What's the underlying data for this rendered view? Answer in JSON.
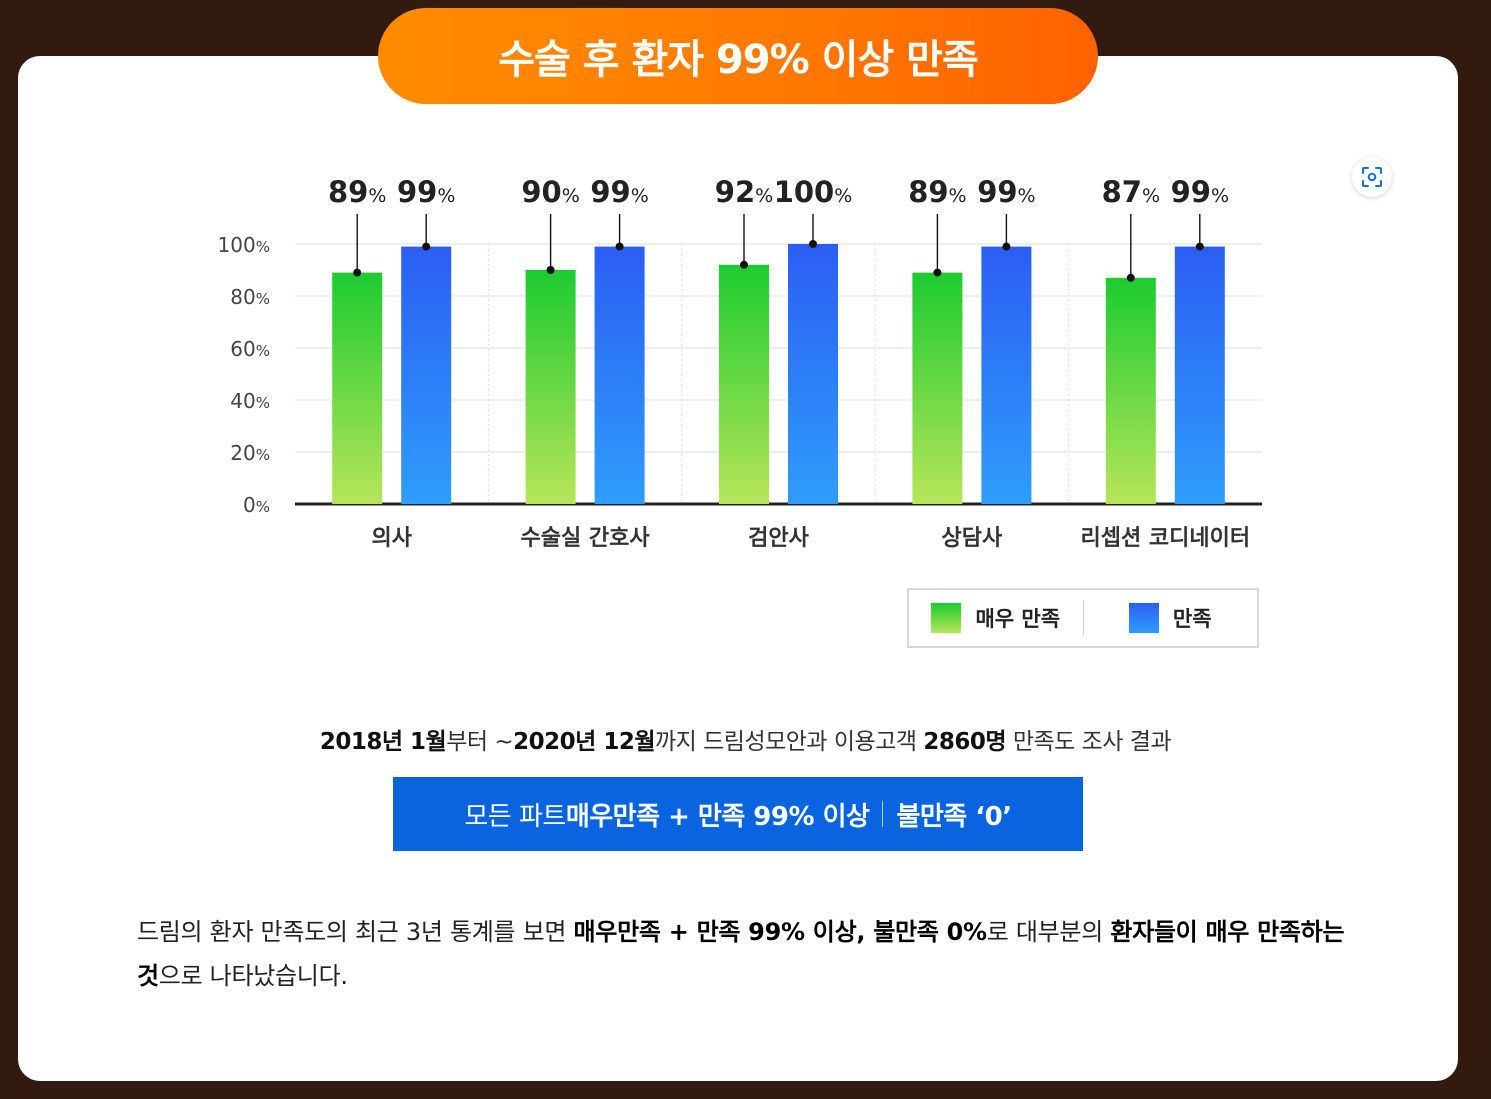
{
  "header": {
    "title": "수술 후 환자 99% 이상 만족"
  },
  "chart_data": {
    "type": "bar",
    "categories": [
      "의사",
      "수술실 간호사",
      "검안사",
      "상담사",
      "리셉션 코디네이터"
    ],
    "series": [
      {
        "name": "매우 만족",
        "values": [
          89,
          90,
          92,
          89,
          87
        ],
        "value_labels": [
          "89",
          "90",
          "92",
          "89",
          "87"
        ]
      },
      {
        "name": "만족",
        "values": [
          99,
          99,
          100,
          99,
          99
        ],
        "value_labels": [
          "99",
          "99",
          "100",
          "99",
          "99"
        ]
      }
    ],
    "unit": "%",
    "yticks": [
      "0",
      "20",
      "40",
      "60",
      "80",
      "100"
    ],
    "ylim": [
      0,
      100
    ],
    "grid": true,
    "legend_position": "bottom-right",
    "colors": {
      "series_1": "#1ccb30",
      "series_2": "#2b5ef3"
    }
  },
  "legend": {
    "items": [
      "매우 만족",
      "만족"
    ]
  },
  "survey": {
    "p1": "2018년 1월",
    "p2": "부터 ~",
    "p3": "2020년 12월",
    "p4": "까지 드림성모안과 이용고객 ",
    "p5": "2860명",
    "p6": " 만족도 조사 결과"
  },
  "banner": {
    "p1": "모든 파트 ",
    "p2": "매우만족 + 만족 99% 이상",
    "p3": "불만족 ‘0’"
  },
  "paragraph": {
    "p1": "드림의 환자 만족도의 최근 3년 통계를 보면 ",
    "p2": "매우만족 + 만족 99% 이상, 불만족 0%",
    "p3": "로 대부분의 ",
    "p4": "환자들이 매우 만족하는 것",
    "p5": "으로 나타났습니다."
  }
}
